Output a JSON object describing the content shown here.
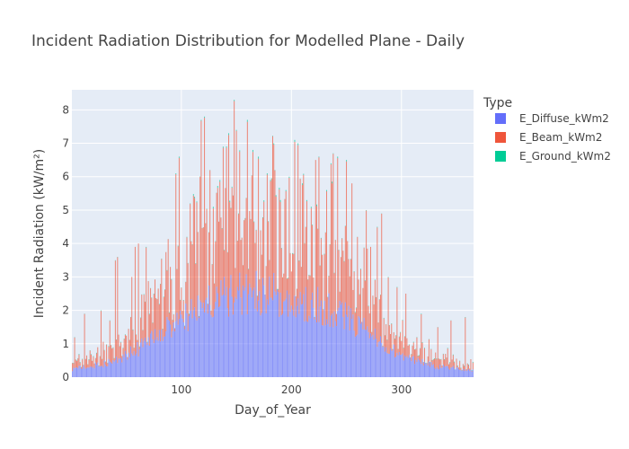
{
  "chart_data": {
    "type": "bar",
    "stacked": true,
    "title": "Incident Radiation Distribution for Modelled Plane - Daily",
    "xlabel": "Day_of_Year",
    "ylabel": "Incident Radiation (kW/m²)",
    "xlim": [
      0.5,
      365.5
    ],
    "ylim": [
      0,
      8.6
    ],
    "x_ticks": [
      100,
      200,
      300
    ],
    "y_ticks": [
      0,
      1,
      2,
      3,
      4,
      5,
      6,
      7,
      8
    ],
    "grid": true,
    "legend": {
      "title": "Type",
      "placement": "right"
    },
    "series": [
      {
        "name": "E_Diffuse_kWm2",
        "color": "#636efa"
      },
      {
        "name": "E_Beam_kWm2",
        "color": "#ef553b"
      },
      {
        "name": "E_Ground_kWm2",
        "color": "#00cc96"
      }
    ],
    "daily_values": {
      "days": "1-365",
      "diffuse_envelope": [
        [
          1,
          0.3
        ],
        [
          20,
          0.4
        ],
        [
          40,
          0.6
        ],
        [
          60,
          1.0
        ],
        [
          80,
          1.6
        ],
        [
          100,
          2.1
        ],
        [
          120,
          2.7
        ],
        [
          150,
          3.05
        ],
        [
          180,
          3.05
        ],
        [
          200,
          2.9
        ],
        [
          220,
          2.7
        ],
        [
          250,
          2.2
        ],
        [
          280,
          1.3
        ],
        [
          300,
          0.75
        ],
        [
          330,
          0.4
        ],
        [
          365,
          0.25
        ]
      ],
      "beam_peaks": [
        {
          "day": 3,
          "total": 1.2
        },
        {
          "day": 12,
          "total": 1.9
        },
        {
          "day": 27,
          "total": 2.0
        },
        {
          "day": 35,
          "total": 1.7
        },
        {
          "day": 40,
          "total": 3.5
        },
        {
          "day": 42,
          "total": 3.6
        },
        {
          "day": 55,
          "total": 3.0
        },
        {
          "day": 58,
          "total": 3.9
        },
        {
          "day": 61,
          "total": 4.0
        },
        {
          "day": 68,
          "total": 3.9
        },
        {
          "day": 75,
          "total": 2.5
        },
        {
          "day": 90,
          "total": 3.3
        },
        {
          "day": 95,
          "total": 6.1
        },
        {
          "day": 98,
          "total": 6.6
        },
        {
          "day": 105,
          "total": 4.2
        },
        {
          "day": 108,
          "total": 5.2
        },
        {
          "day": 112,
          "total": 5.4
        },
        {
          "day": 118,
          "total": 7.7
        },
        {
          "day": 121,
          "total": 7.8
        },
        {
          "day": 126,
          "total": 6.2
        },
        {
          "day": 129,
          "total": 5.1
        },
        {
          "day": 135,
          "total": 5.9
        },
        {
          "day": 138,
          "total": 6.9
        },
        {
          "day": 143,
          "total": 7.3
        },
        {
          "day": 146,
          "total": 5.7
        },
        {
          "day": 148,
          "total": 8.3
        },
        {
          "day": 150,
          "total": 7.4
        },
        {
          "day": 152,
          "total": 4.9
        },
        {
          "day": 157,
          "total": 4.7
        },
        {
          "day": 160,
          "total": 7.7
        },
        {
          "day": 165,
          "total": 6.8
        },
        {
          "day": 170,
          "total": 6.6
        },
        {
          "day": 178,
          "total": 6.1
        },
        {
          "day": 181,
          "total": 5.9
        },
        {
          "day": 185,
          "total": 6.2
        },
        {
          "day": 190,
          "total": 5.3
        },
        {
          "day": 195,
          "total": 5.6
        },
        {
          "day": 198,
          "total": 6.0
        },
        {
          "day": 203,
          "total": 7.1
        },
        {
          "day": 206,
          "total": 7.0
        },
        {
          "day": 210,
          "total": 5.8
        },
        {
          "day": 214,
          "total": 5.3
        },
        {
          "day": 218,
          "total": 5.1
        },
        {
          "day": 222,
          "total": 6.5
        },
        {
          "day": 225,
          "total": 6.6
        },
        {
          "day": 232,
          "total": 5.6
        },
        {
          "day": 236,
          "total": 6.4
        },
        {
          "day": 238,
          "total": 6.7
        },
        {
          "day": 242,
          "total": 6.6
        },
        {
          "day": 250,
          "total": 6.5
        },
        {
          "day": 255,
          "total": 5.8
        },
        {
          "day": 260,
          "total": 4.2
        },
        {
          "day": 268,
          "total": 5.0
        },
        {
          "day": 272,
          "total": 3.9
        },
        {
          "day": 278,
          "total": 4.5
        },
        {
          "day": 282,
          "total": 4.9
        },
        {
          "day": 288,
          "total": 3.0
        },
        {
          "day": 296,
          "total": 2.7
        },
        {
          "day": 304,
          "total": 2.5
        },
        {
          "day": 318,
          "total": 1.9
        },
        {
          "day": 333,
          "total": 1.5
        },
        {
          "day": 345,
          "total": 1.7
        },
        {
          "day": 358,
          "total": 1.8
        }
      ]
    }
  }
}
